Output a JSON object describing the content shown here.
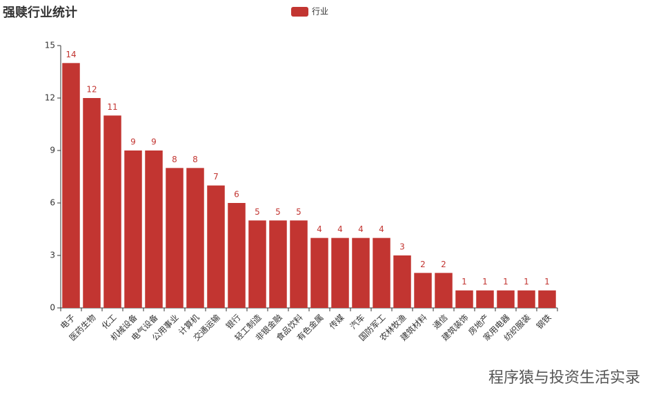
{
  "chart_data": {
    "type": "bar",
    "title": "强赎行业统计",
    "categories": [
      "电子",
      "医药生物",
      "化工",
      "机械设备",
      "电气设备",
      "公用事业",
      "计算机",
      "交通运输",
      "银行",
      "轻工制造",
      "非银金融",
      "食品饮料",
      "有色金属",
      "传媒",
      "汽车",
      "国防军工",
      "农林牧渔",
      "建筑材料",
      "通信",
      "建筑装饰",
      "房地产",
      "家用电器",
      "纺织服装",
      "钢铁"
    ],
    "series": [
      {
        "name": "行业",
        "color": "#c23531",
        "values": [
          14,
          12,
          11,
          9,
          9,
          8,
          8,
          7,
          6,
          5,
          5,
          5,
          4,
          4,
          4,
          4,
          3,
          2,
          2,
          1,
          1,
          1,
          1,
          1
        ]
      }
    ],
    "ylim": [
      0,
      15
    ],
    "yticks": [
      0,
      3,
      6,
      9,
      12,
      15
    ],
    "grid": false,
    "legend": "top",
    "watermark": "程序猿与投资生活实录"
  }
}
